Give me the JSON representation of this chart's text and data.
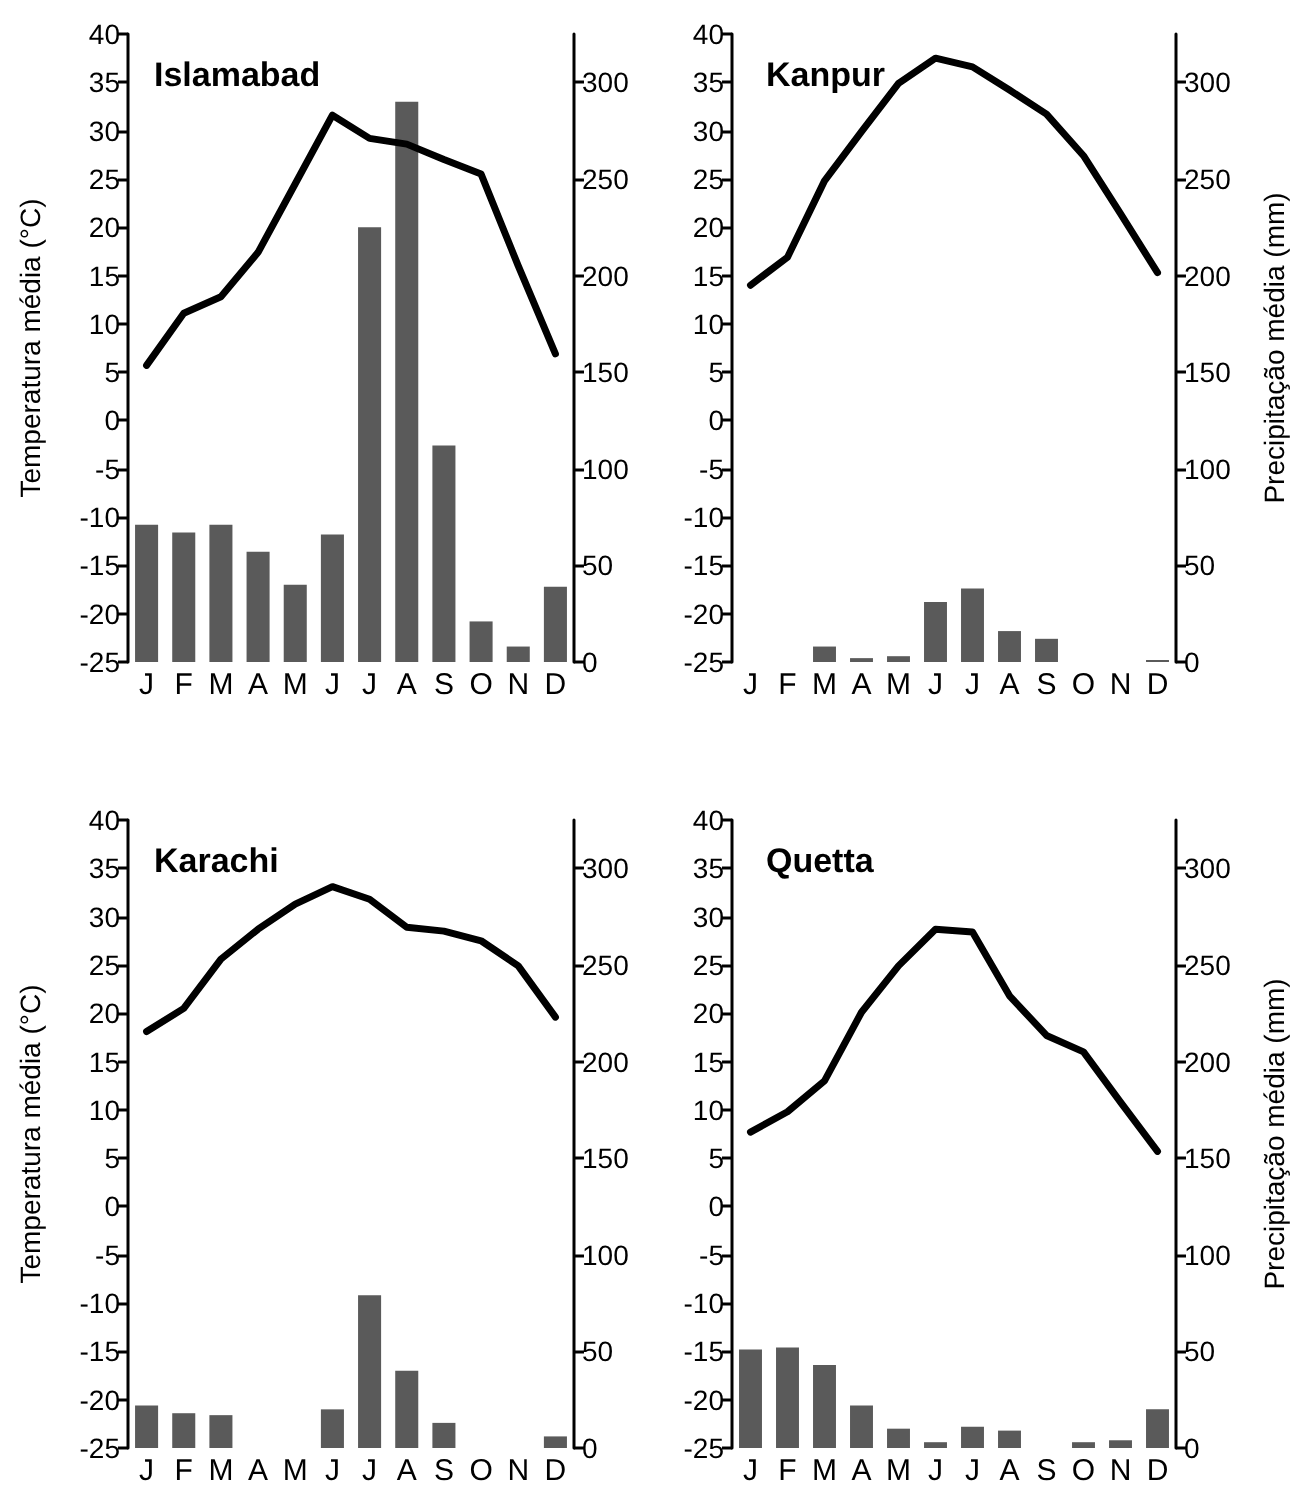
{
  "chart_data": [
    {
      "type": "bar",
      "title": "Islamabad",
      "ylabel": "Temperatura média (°C)",
      "categories": [
        "J",
        "F",
        "M",
        "A",
        "M",
        "J",
        "J",
        "A",
        "S",
        "O",
        "N",
        "D"
      ],
      "series": [
        {
          "axis": "y2",
          "color": "#5a5a5a",
          "values": [
            71,
            67,
            71,
            57,
            40,
            66,
            225,
            290,
            112,
            21,
            8,
            39
          ]
        },
        {
          "type": "line",
          "color": "#000000",
          "values": [
            5.7,
            11.1,
            12.8,
            17.4,
            24.5,
            31.6,
            29.2,
            28.6,
            27,
            25.5,
            16,
            6.9
          ]
        }
      ],
      "ylim": [
        -25,
        40
      ],
      "yticks": [
        -25,
        -20,
        -15,
        -10,
        -5,
        0,
        5,
        10,
        15,
        20,
        25,
        30,
        35,
        40
      ],
      "y2lim": [
        0,
        325
      ],
      "y2ticks": [
        0,
        50,
        100,
        150,
        200,
        250,
        300
      ],
      "grid": false,
      "marker": "none",
      "line_style": "solid"
    },
    {
      "type": "bar",
      "title": "Kanpur",
      "y2label": "Precipitação média (mm)",
      "categories": [
        "J",
        "F",
        "M",
        "A",
        "M",
        "J",
        "J",
        "A",
        "S",
        "O",
        "N",
        "D"
      ],
      "series": [
        {
          "axis": "y2",
          "color": "#5a5a5a",
          "values": [
            null,
            null,
            8,
            2,
            3,
            31,
            38,
            16,
            12,
            null,
            null,
            1
          ]
        },
        {
          "type": "line",
          "color": "#000000",
          "values": [
            14,
            16.9,
            24.8,
            29.9,
            34.9,
            37.5,
            36.6,
            34.2,
            31.7,
            27.4,
            21.4,
            15.3
          ]
        }
      ],
      "ylim": [
        -25,
        40
      ],
      "yticks": [
        -25,
        -20,
        -15,
        -10,
        -5,
        0,
        5,
        10,
        15,
        20,
        25,
        30,
        35,
        40
      ],
      "y2lim": [
        0,
        325
      ],
      "y2ticks": [
        0,
        50,
        100,
        150,
        200,
        250,
        300
      ],
      "grid": false,
      "marker": "none",
      "line_style": "solid"
    },
    {
      "type": "bar",
      "title": "Karachi",
      "ylabel": "Temperatura média (°C)",
      "categories": [
        "J",
        "F",
        "M",
        "A",
        "M",
        "J",
        "J",
        "A",
        "S",
        "O",
        "N",
        "D"
      ],
      "series": [
        {
          "axis": "y2",
          "color": "#5a5a5a",
          "values": [
            22,
            18,
            17,
            null,
            null,
            20,
            79,
            40,
            13,
            null,
            null,
            6
          ]
        },
        {
          "type": "line",
          "color": "#000000",
          "values": [
            18.1,
            20.5,
            25.6,
            28.7,
            31.3,
            33.1,
            31.8,
            28.9,
            28.5,
            27.5,
            24.9,
            19.6
          ]
        }
      ],
      "ylim": [
        -25,
        40
      ],
      "yticks": [
        -25,
        -20,
        -15,
        -10,
        -5,
        0,
        5,
        10,
        15,
        20,
        25,
        30,
        35,
        40
      ],
      "y2lim": [
        0,
        325
      ],
      "y2ticks": [
        0,
        50,
        100,
        150,
        200,
        250,
        300
      ],
      "grid": false,
      "marker": "none",
      "line_style": "solid"
    },
    {
      "type": "bar",
      "title": "Quetta",
      "y2label": "Precipitação média (mm)",
      "categories": [
        "J",
        "F",
        "M",
        "A",
        "M",
        "J",
        "J",
        "A",
        "S",
        "O",
        "N",
        "D"
      ],
      "series": [
        {
          "axis": "y2",
          "color": "#5a5a5a",
          "values": [
            51,
            52,
            43,
            22,
            10,
            3,
            11,
            9,
            null,
            3,
            4,
            20
          ]
        },
        {
          "type": "line",
          "color": "#000000",
          "values": [
            7.7,
            9.8,
            13,
            20.1,
            24.9,
            28.7,
            28.4,
            21.8,
            17.7,
            16,
            10.8,
            5.7
          ]
        }
      ],
      "ylim": [
        -25,
        40
      ],
      "yticks": [
        -25,
        -20,
        -15,
        -10,
        -5,
        0,
        5,
        10,
        15,
        20,
        25,
        30,
        35,
        40
      ],
      "y2lim": [
        0,
        325
      ],
      "y2ticks": [
        0,
        50,
        100,
        150,
        200,
        250,
        300
      ],
      "grid": false,
      "marker": "none",
      "line_style": "solid"
    }
  ]
}
